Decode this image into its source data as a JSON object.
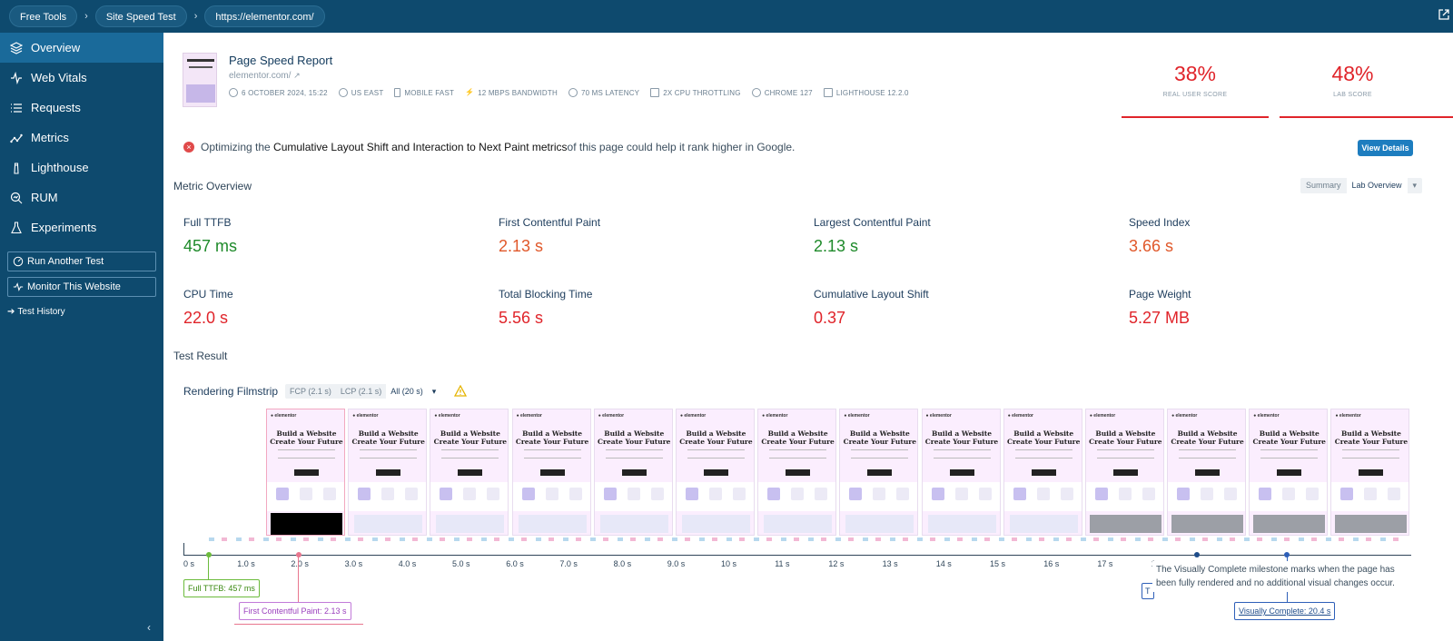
{
  "breadcrumbs": [
    "Free Tools",
    "Site Speed Test",
    "https://elementor.com/"
  ],
  "sidebar": {
    "items": [
      {
        "label": "Overview",
        "icon": "layers-icon",
        "active": true
      },
      {
        "label": "Web Vitals",
        "icon": "pulse-icon"
      },
      {
        "label": "Requests",
        "icon": "list-icon"
      },
      {
        "label": "Metrics",
        "icon": "chart-icon"
      },
      {
        "label": "Lighthouse",
        "icon": "lighthouse-icon"
      },
      {
        "label": "RUM",
        "icon": "search-chart-icon"
      },
      {
        "label": "Experiments",
        "icon": "flask-icon"
      }
    ],
    "run_another": "Run Another Test",
    "monitor": "Monitor This Website",
    "history": "Test History"
  },
  "report": {
    "title": "Page Speed Report",
    "url": "elementor.com/",
    "meta": [
      {
        "text": "6 OCTOBER 2024, 15:22",
        "icon": "clock-icon"
      },
      {
        "text": "US EAST",
        "icon": "globe-icon"
      },
      {
        "text": "MOBILE FAST",
        "icon": "mobile-icon"
      },
      {
        "text": "12 MBPS BANDWIDTH",
        "icon": "bolt-icon"
      },
      {
        "text": "70 MS LATENCY",
        "icon": "gauge-icon"
      },
      {
        "text": "2X CPU THROTTLING",
        "icon": "cpu-icon"
      },
      {
        "text": "CHROME 127",
        "icon": "chrome-icon"
      },
      {
        "text": "LIGHTHOUSE 12.2.0",
        "icon": "lighthouse-icon"
      }
    ],
    "real_user_score": "38%",
    "real_user_label": "REAL USER SCORE",
    "lab_score": "48%",
    "lab_label": "LAB SCORE"
  },
  "alert": {
    "pre": "Optimizing the ",
    "bold": "Cumulative Layout Shift and Interaction to Next Paint metrics",
    "post": " of this page could help it rank higher in Google.",
    "button": "View Details"
  },
  "metric_overview": {
    "title": "Metric Overview",
    "toggle": [
      "Summary",
      "Lab Overview"
    ],
    "metrics": [
      {
        "label": "Full TTFB",
        "value": "457 ms",
        "status": "good"
      },
      {
        "label": "First Contentful Paint",
        "value": "2.13 s",
        "status": "avg"
      },
      {
        "label": "Largest Contentful Paint",
        "value": "2.13 s",
        "status": "good"
      },
      {
        "label": "Speed Index",
        "value": "3.66 s",
        "status": "avg"
      },
      {
        "label": "CPU Time",
        "value": "22.0 s",
        "status": "bad"
      },
      {
        "label": "Total Blocking Time",
        "value": "5.56 s",
        "status": "bad"
      },
      {
        "label": "Cumulative Layout Shift",
        "value": "0.37",
        "status": "bad"
      },
      {
        "label": "Page Weight",
        "value": "5.27 MB",
        "status": "bad"
      }
    ]
  },
  "test_result": {
    "title": "Test Result",
    "filmstrip_label": "Rendering Filmstrip",
    "filters": [
      "FCP (2.1 s)",
      "LCP (2.1 s)",
      "All (20 s)"
    ],
    "frame_heading": "Build a Website Create Your Future",
    "frame_count": 14,
    "ticks": [
      "0 s",
      "1.0 s",
      "2.0 s",
      "3.0 s",
      "4.0 s",
      "5.0 s",
      "6.0 s",
      "7.0 s",
      "8.0 s",
      "9.0 s",
      "10 s",
      "11 s",
      "12 s",
      "13 s",
      "14 s",
      "15 s",
      "16 s",
      "17 s",
      "1"
    ],
    "milestones": {
      "ttfb": "Full TTFB: 457 ms",
      "fcp": "First Contentful Paint: 2.13 s",
      "vc": "Visually Complete: 20.4 s",
      "t_label": "T"
    },
    "tooltip": "The Visually Complete milestone marks when the page has been fully rendered and no additional visual changes occur."
  },
  "colors": {
    "good": "#1e8a2a",
    "avg": "#e0582a",
    "bad": "#e0242a",
    "accent": "#1d7dbf",
    "sidebar": "#0e4a6e"
  }
}
